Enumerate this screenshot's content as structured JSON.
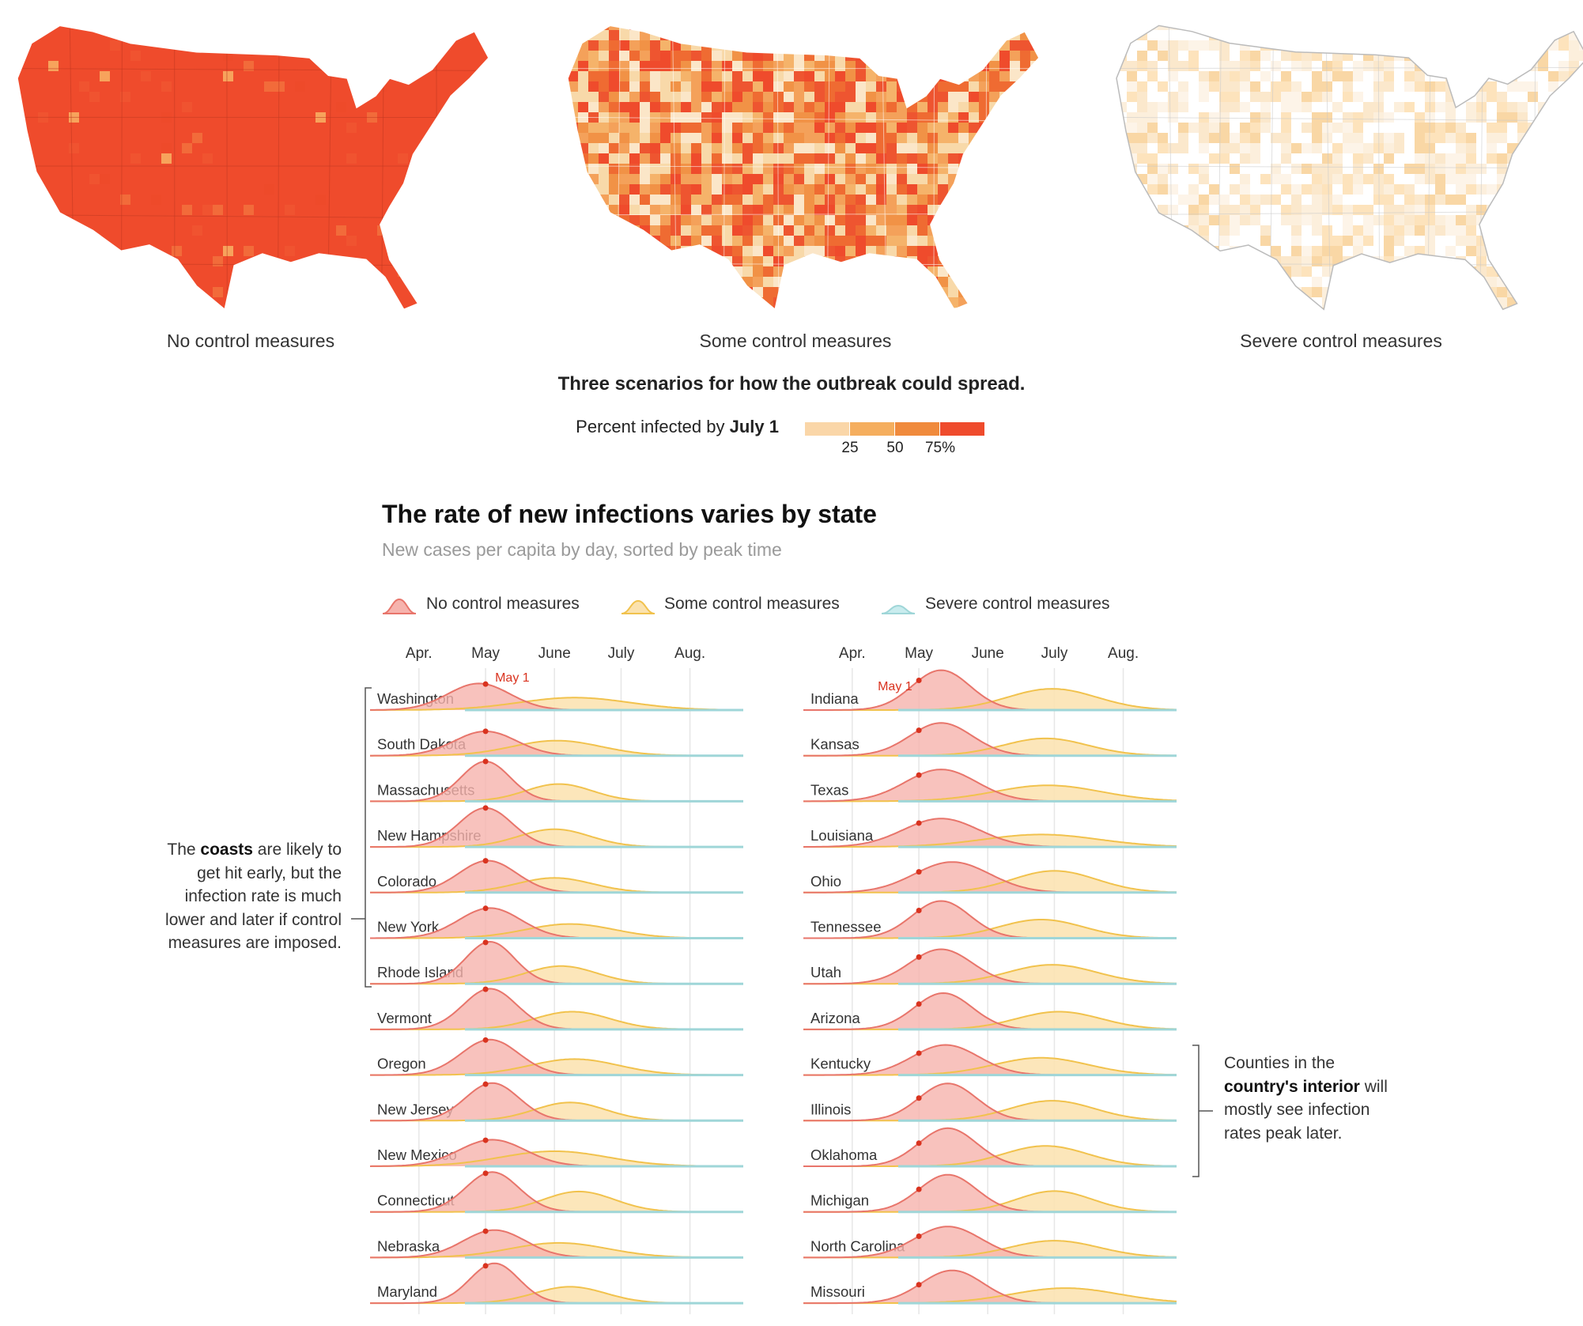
{
  "maps": [
    {
      "caption": "No control measures",
      "level": "high",
      "base_color": "#ef4b2c"
    },
    {
      "caption": "Some control measures",
      "level": "mid",
      "base_color": "#f3a65b"
    },
    {
      "caption": "Severe control measures",
      "level": "low",
      "base_color": "#fbf1e4"
    }
  ],
  "maps_title": "Three scenarios for how the outbreak could spread.",
  "legend": {
    "label_prefix": "Percent infected by ",
    "label_bold": "July 1",
    "ticks": [
      "25",
      "50",
      "75%"
    ],
    "colors": [
      "#fad6a8",
      "#f5ae5e",
      "#f08a3c",
      "#ef4b2c"
    ]
  },
  "ridge": {
    "title": "The rate of new infections varies by state",
    "subtitle": "New cases per capita by day, sorted by peak time",
    "scenario_legend": [
      "No control measures",
      "Some control measures",
      "Severe control measures"
    ],
    "colors": {
      "no": "#e8756b",
      "no_fill": "#f6b3ad",
      "some": "#f1c24d",
      "some_fill": "#fbe2ae",
      "severe": "#9fd6d8"
    },
    "month_labels": [
      "Apr.",
      "May",
      "June",
      "July",
      "Aug."
    ],
    "may1_label": "May 1",
    "annot_left": {
      "pre": "The ",
      "bold": "coasts",
      "post": " are likely to get hit early, but the infection rate is much lower and later if control measures are imposed."
    },
    "annot_right": {
      "pre": "Counties in the ",
      "bold": "country's interior",
      "post": " will mostly see infection rates peak later."
    }
  },
  "chart_data": {
    "type": "area",
    "title": "The rate of new infections varies by state",
    "subtitle": "New cases per capita by day, sorted by peak time",
    "x_axis": {
      "unit": "month",
      "ticks": [
        "Apr.",
        "May",
        "June",
        "July",
        "Aug."
      ],
      "range": [
        "Mar. 10",
        "Aug. 25"
      ]
    },
    "marker": "May 1",
    "series_names": [
      "No control measures",
      "Some control measures",
      "Severe control measures"
    ],
    "columns": [
      {
        "states": [
          {
            "name": "Washington",
            "no": {
              "peak": "Apr. 28",
              "height": 0.6,
              "width": 14
            },
            "some": {
              "peak": "June 10",
              "height": 0.28,
              "width": 25
            }
          },
          {
            "name": "South Dakota",
            "no": {
              "peak": "May 1",
              "height": 0.55,
              "width": 14
            },
            "some": {
              "peak": "June 2",
              "height": 0.34,
              "width": 20
            }
          },
          {
            "name": "Massachusetts",
            "no": {
              "peak": "May 1",
              "height": 0.9,
              "width": 11
            },
            "some": {
              "peak": "June 3",
              "height": 0.39,
              "width": 15
            }
          },
          {
            "name": "New Hampshire",
            "no": {
              "peak": "May 1",
              "height": 0.88,
              "width": 12
            },
            "some": {
              "peak": "June 1",
              "height": 0.4,
              "width": 16
            }
          },
          {
            "name": "Colorado",
            "no": {
              "peak": "May 2",
              "height": 0.72,
              "width": 13
            },
            "some": {
              "peak": "June 1",
              "height": 0.33,
              "width": 17
            }
          },
          {
            "name": "New York",
            "no": {
              "peak": "May 3",
              "height": 0.68,
              "width": 14
            },
            "some": {
              "peak": "June 8",
              "height": 0.32,
              "width": 20
            }
          },
          {
            "name": "Rhode Island",
            "no": {
              "peak": "May 3",
              "height": 0.95,
              "width": 11
            },
            "some": {
              "peak": "June 4",
              "height": 0.4,
              "width": 16
            }
          },
          {
            "name": "Vermont",
            "no": {
              "peak": "May 3",
              "height": 0.92,
              "width": 12
            },
            "some": {
              "peak": "June 9",
              "height": 0.4,
              "width": 17
            }
          },
          {
            "name": "Oregon",
            "no": {
              "peak": "May 3",
              "height": 0.8,
              "width": 13
            },
            "some": {
              "peak": "June 10",
              "height": 0.36,
              "width": 20
            }
          },
          {
            "name": "New Jersey",
            "no": {
              "peak": "May 4",
              "height": 0.85,
              "width": 12
            },
            "some": {
              "peak": "June 8",
              "height": 0.41,
              "width": 16
            }
          },
          {
            "name": "New Mexico",
            "no": {
              "peak": "May 4",
              "height": 0.6,
              "width": 15
            },
            "some": {
              "peak": "June 1",
              "height": 0.34,
              "width": 24
            }
          },
          {
            "name": "Connecticut",
            "no": {
              "peak": "May 4",
              "height": 0.9,
              "width": 12
            },
            "some": {
              "peak": "June 12",
              "height": 0.46,
              "width": 16
            }
          },
          {
            "name": "Nebraska",
            "no": {
              "peak": "May 5",
              "height": 0.62,
              "width": 14
            },
            "some": {
              "peak": "June 3",
              "height": 0.33,
              "width": 22
            }
          },
          {
            "name": "Maryland",
            "no": {
              "peak": "May 5",
              "height": 0.9,
              "width": 11
            },
            "some": {
              "peak": "June 8",
              "height": 0.37,
              "width": 16
            }
          }
        ]
      },
      {
        "states": [
          {
            "name": "Indiana",
            "no": {
              "peak": "May 11",
              "height": 0.9,
              "width": 13
            },
            "some": {
              "peak": "June 30",
              "height": 0.48,
              "width": 20
            }
          },
          {
            "name": "Kansas",
            "no": {
              "peak": "May 11",
              "height": 0.74,
              "width": 14
            },
            "some": {
              "peak": "June 27",
              "height": 0.39,
              "width": 19
            }
          },
          {
            "name": "Texas",
            "no": {
              "peak": "May 11",
              "height": 0.72,
              "width": 16
            },
            "some": {
              "peak": "June 28",
              "height": 0.36,
              "width": 24
            }
          },
          {
            "name": "Louisiana",
            "no": {
              "peak": "May 11",
              "height": 0.64,
              "width": 17
            },
            "some": {
              "peak": "June 25",
              "height": 0.28,
              "width": 26
            }
          },
          {
            "name": "Ohio",
            "no": {
              "peak": "May 16",
              "height": 0.69,
              "width": 17
            },
            "some": {
              "peak": "July 1",
              "height": 0.49,
              "width": 19
            }
          },
          {
            "name": "Tennessee",
            "no": {
              "peak": "May 11",
              "height": 0.84,
              "width": 13
            },
            "some": {
              "peak": "June 25",
              "height": 0.42,
              "width": 19
            }
          },
          {
            "name": "Utah",
            "no": {
              "peak": "May 11",
              "height": 0.78,
              "width": 14
            },
            "some": {
              "peak": "June 30",
              "height": 0.43,
              "width": 20
            }
          },
          {
            "name": "Arizona",
            "no": {
              "peak": "May 12",
              "height": 0.82,
              "width": 13
            },
            "some": {
              "peak": "July 3",
              "height": 0.4,
              "width": 19
            }
          },
          {
            "name": "Kentucky",
            "no": {
              "peak": "May 13",
              "height": 0.68,
              "width": 15
            },
            "some": {
              "peak": "June 25",
              "height": 0.39,
              "width": 21
            }
          },
          {
            "name": "Illinois",
            "no": {
              "peak": "May 14",
              "height": 0.84,
              "width": 13
            },
            "some": {
              "peak": "June 30",
              "height": 0.45,
              "width": 19
            }
          },
          {
            "name": "Oklahoma",
            "no": {
              "peak": "May 14",
              "height": 0.86,
              "width": 13
            },
            "some": {
              "peak": "June 27",
              "height": 0.46,
              "width": 19
            }
          },
          {
            "name": "Michigan",
            "no": {
              "peak": "May 14",
              "height": 0.84,
              "width": 13
            },
            "some": {
              "peak": "July 1",
              "height": 0.47,
              "width": 17
            }
          },
          {
            "name": "North Carolina",
            "no": {
              "peak": "May 14",
              "height": 0.7,
              "width": 15
            },
            "some": {
              "peak": "July 1",
              "height": 0.38,
              "width": 20
            }
          },
          {
            "name": "Missouri",
            "no": {
              "peak": "May 16",
              "height": 0.74,
              "width": 14
            },
            "some": {
              "peak": "July 6",
              "height": 0.34,
              "width": 24
            }
          }
        ]
      }
    ]
  }
}
